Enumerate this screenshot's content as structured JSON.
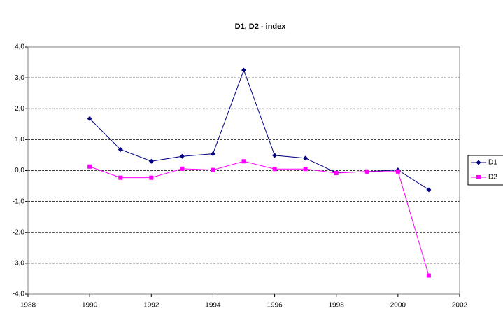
{
  "chart_data": {
    "type": "line",
    "title": "D1, D2 - index",
    "x": [
      1990,
      1991,
      1992,
      1993,
      1994,
      1995,
      1996,
      1997,
      1998,
      1999,
      2000,
      2001
    ],
    "series": [
      {
        "name": "D1",
        "color": "#000080",
        "marker": "diamond",
        "values": [
          1.68,
          0.68,
          0.3,
          0.46,
          0.54,
          3.25,
          0.49,
          0.4,
          -0.07,
          -0.03,
          0.02,
          -0.62
        ]
      },
      {
        "name": "D2",
        "color": "#ff00ff",
        "marker": "square",
        "values": [
          0.13,
          -0.23,
          -0.23,
          0.06,
          0.02,
          0.3,
          0.05,
          0.05,
          -0.08,
          -0.03,
          -0.03,
          -3.4
        ]
      }
    ],
    "xlim": [
      1988,
      2002
    ],
    "xticks": [
      1988,
      1990,
      1992,
      1994,
      1996,
      1998,
      2000,
      2002
    ],
    "ylim": [
      -4,
      4
    ],
    "yticks": [
      {
        "value": -4,
        "label": "-4,0"
      },
      {
        "value": -3,
        "label": "-3,0"
      },
      {
        "value": -2,
        "label": "-2,0"
      },
      {
        "value": -1,
        "label": "-1,0"
      },
      {
        "value": 0,
        "label": "0,0"
      },
      {
        "value": 1,
        "label": "1,0"
      },
      {
        "value": 2,
        "label": "2,0"
      },
      {
        "value": 3,
        "label": "3,0"
      },
      {
        "value": 4,
        "label": "4,0"
      }
    ],
    "grid": true,
    "legend": "right"
  }
}
